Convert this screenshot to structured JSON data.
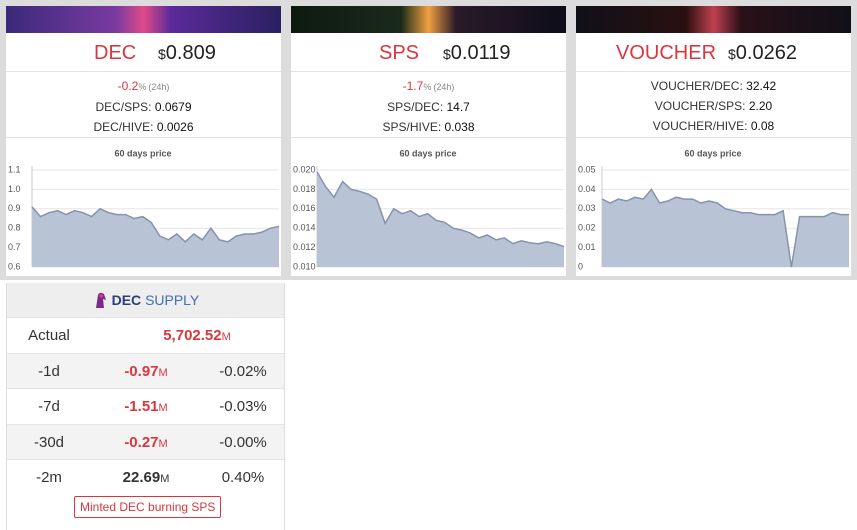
{
  "cards": [
    {
      "token": "DEC",
      "price_symbol": "$",
      "price": "0.809",
      "change": "-0.2",
      "change_unit": "%",
      "change_period": "(24h)",
      "pairs": [
        {
          "label": "DEC/SPS:",
          "value": "0.0679"
        },
        {
          "label": "DEC/HIVE:",
          "value": "0.0026"
        }
      ],
      "chart": {
        "type": "area",
        "title": "60 days price",
        "color": "#b9c3d6",
        "line_color": "#8593ad",
        "values": [
          0.91,
          0.86,
          0.88,
          0.89,
          0.87,
          0.89,
          0.88,
          0.86,
          0.9,
          0.88,
          0.87,
          0.87,
          0.85,
          0.86,
          0.83,
          0.76,
          0.74,
          0.77,
          0.73,
          0.77,
          0.74,
          0.8,
          0.74,
          0.73,
          0.76,
          0.77,
          0.77,
          0.78,
          0.8,
          0.81
        ],
        "ylim": [
          0.6,
          1.1
        ],
        "yticks": [
          0.6,
          0.7,
          0.8,
          0.9,
          {
            "value": 1,
            "label": "1.0"
          },
          1.1
        ],
        "grid": true
      }
    },
    {
      "token": "SPS",
      "price_symbol": "$",
      "price": "0.0119",
      "change": "-1.7",
      "change_unit": "%",
      "change_period": "(24h)",
      "pairs": [
        {
          "label": "SPS/DEC:",
          "value": "14.7"
        },
        {
          "label": "SPS/HIVE:",
          "value": "0.038"
        }
      ],
      "chart": {
        "type": "area",
        "title": "60 days price",
        "color": "#b9c3d6",
        "line_color": "#8593ad",
        "values": [
          0.0198,
          0.0183,
          0.0172,
          0.0188,
          0.018,
          0.0178,
          0.0175,
          0.017,
          0.0145,
          0.016,
          0.0155,
          0.0158,
          0.0152,
          0.0155,
          0.0148,
          0.0146,
          0.014,
          0.0138,
          0.0135,
          0.013,
          0.0133,
          0.0128,
          0.013,
          0.0124,
          0.0127,
          0.0125,
          0.0124,
          0.0126,
          0.0124,
          0.0121
        ],
        "ylim": [
          0.01,
          0.02
        ],
        "yticks": [
          {
            "value": 0.01,
            "label": "0.010"
          },
          0.012,
          0.014,
          0.016,
          0.018,
          {
            "value": 0.02,
            "label": "0.020"
          }
        ],
        "grid": true
      }
    },
    {
      "token": "VOUCHER",
      "price_symbol": "$",
      "price": "0.0262",
      "pairs": [
        {
          "label": "VOUCHER/DEC:",
          "value": "32.42"
        },
        {
          "label": "VOUCHER/SPS:",
          "value": "2.20"
        },
        {
          "label": "VOUCHER/HIVE:",
          "value": "0.08"
        }
      ],
      "chart": {
        "type": "area",
        "title": "60 days price",
        "color": "#b9c3d6",
        "line_color": "#8593ad",
        "values": [
          0.035,
          0.033,
          0.035,
          0.034,
          0.036,
          0.035,
          0.04,
          0.033,
          0.034,
          0.036,
          0.035,
          0.035,
          0.033,
          0.034,
          0.033,
          0.03,
          0.029,
          0.028,
          0.028,
          0.027,
          0.027,
          0.027,
          0.029,
          0,
          0.026,
          0.026,
          0.026,
          0.026,
          0.028,
          0.027,
          0.027
        ],
        "ylim": [
          0,
          0.05
        ],
        "yticks": [
          0,
          0.01,
          0.02,
          0.03,
          0.04,
          0.05
        ],
        "grid": true
      }
    }
  ],
  "supply": {
    "token": "DEC",
    "title": "SUPPLY",
    "rows": [
      {
        "label": "Actual",
        "value": "5,702.52",
        "unit": "M",
        "color": "#d9363e"
      },
      {
        "label": "-1d",
        "value": "-0.97",
        "unit": "M",
        "percent": "-0.02%",
        "color": "#d9363e"
      },
      {
        "label": "-7d",
        "value": "-1.51",
        "unit": "M",
        "percent": "-0.03%",
        "color": "#d9363e"
      },
      {
        "label": "-30d",
        "value": "-0.27",
        "unit": "M",
        "percent": "-0.00%",
        "color": "#d9363e"
      },
      {
        "label": "-2m",
        "value": "22.69",
        "unit": "M",
        "percent": "0.40%",
        "color": "#333333"
      }
    ],
    "button": "Minted DEC burning SPS"
  }
}
